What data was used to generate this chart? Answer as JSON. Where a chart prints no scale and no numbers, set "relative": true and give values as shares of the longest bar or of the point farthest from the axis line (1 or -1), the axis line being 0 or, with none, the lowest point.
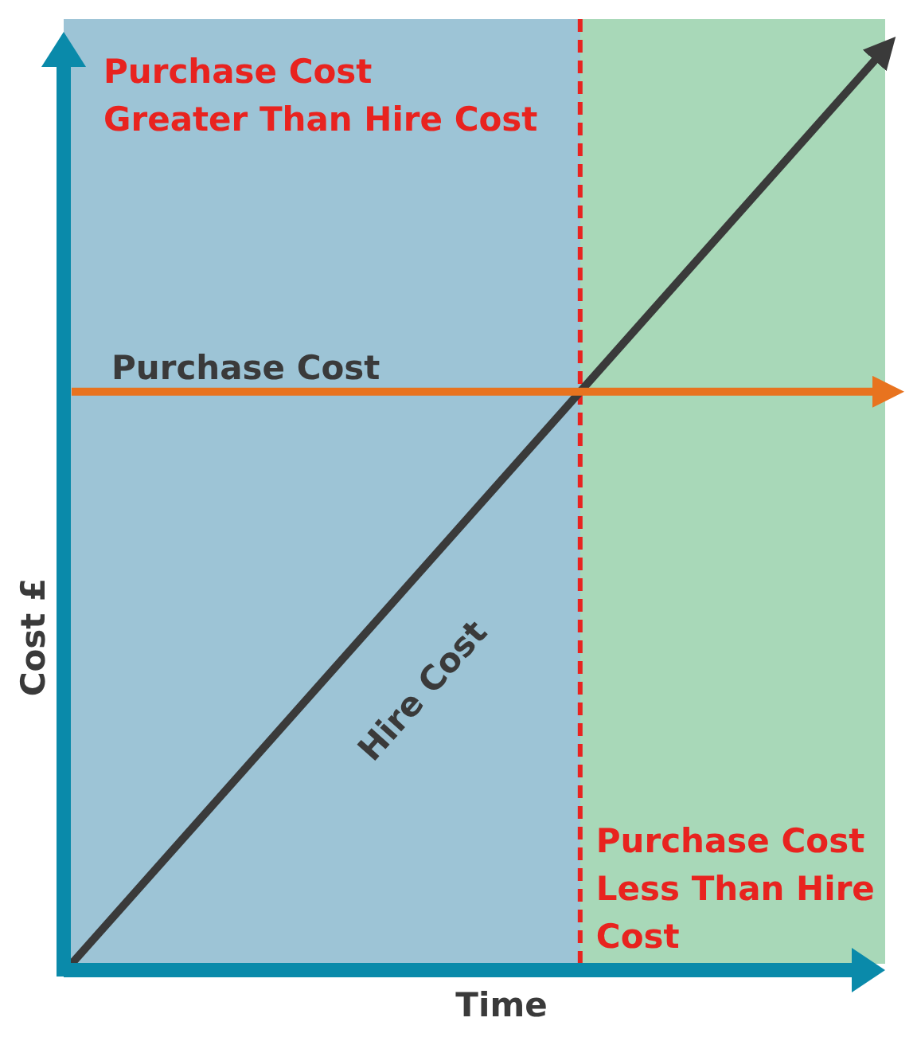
{
  "chart_data": {
    "type": "line",
    "relative": true,
    "xlabel": "Time",
    "ylabel": "Cost £",
    "categories": [
      null,
      null
    ],
    "series": [
      {
        "name": "Hire Cost",
        "color": "#3a3a3a",
        "values": [
          0,
          1
        ]
      },
      {
        "name": "Purchase Cost",
        "color": "#e8731f",
        "values": [
          0.63,
          0.63
        ]
      }
    ],
    "annotations": [
      "Purchase Cost\nGreater Than Hire Cost",
      "Purchase Cost\nLess Than Hire\nCost"
    ]
  }
}
